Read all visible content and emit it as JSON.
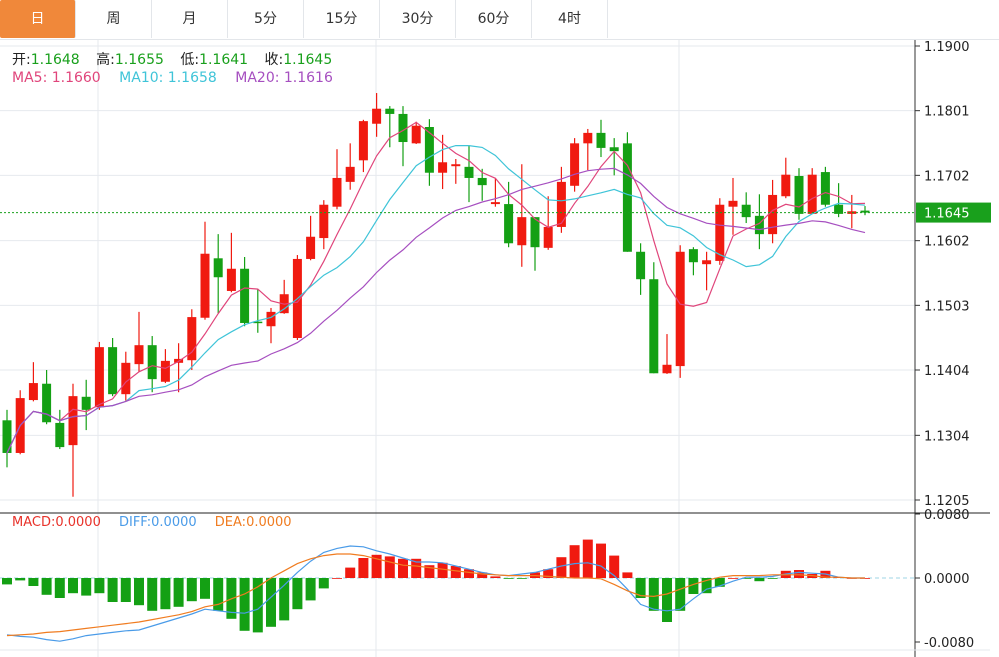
{
  "tabs": [
    {
      "label": "日",
      "active": true
    },
    {
      "label": "周"
    },
    {
      "label": "月"
    },
    {
      "label": "5分"
    },
    {
      "label": "15分"
    },
    {
      "label": "30分"
    },
    {
      "label": "60分"
    },
    {
      "label": "4时"
    }
  ],
  "header": {
    "open_label": "开:",
    "open": "1.1648",
    "high_label": "高:",
    "high": "1.1655",
    "low_label": "低:",
    "low": "1.1641",
    "close_label": "收:",
    "close": "1.1645",
    "ma5": "MA5: 1.1660",
    "ma10": "MA10: 1.1658",
    "ma20": "MA20: 1.1616"
  },
  "macd_legend": {
    "macd": "MACD:0.0000",
    "diff": "DIFF:0.0000",
    "dea": "DEA:0.0000"
  },
  "colors": {
    "up": "#f01a10",
    "down": "#14a014",
    "ma5": "#e0457b",
    "ma10": "#3fc4d8",
    "ma20": "#a64fc0",
    "diff": "#4a9be8",
    "dea": "#f07c20",
    "accent": "#f0883a",
    "last_price": "#19a01c"
  },
  "chart_data": [
    {
      "type": "candlestick",
      "ylim": [
        1.1205,
        1.19
      ],
      "y_ticks": [
        "1.1900",
        "1.1801",
        "1.1702",
        "1.1602",
        "1.1503",
        "1.1404",
        "1.1304",
        "1.1205"
      ],
      "last_price": "1.1645",
      "grid": true,
      "ma_periods": [
        5,
        10,
        20
      ],
      "ohlc": [
        [
          1.1327,
          1.1343,
          1.1255,
          1.1277
        ],
        [
          1.1277,
          1.1373,
          1.1275,
          1.1361
        ],
        [
          1.1358,
          1.1416,
          1.1356,
          1.1384
        ],
        [
          1.1383,
          1.1404,
          1.1321,
          1.1324
        ],
        [
          1.1323,
          1.1343,
          1.1283,
          1.1286
        ],
        [
          1.1289,
          1.1383,
          1.121,
          1.1364
        ],
        [
          1.1363,
          1.1389,
          1.1312,
          1.1343
        ],
        [
          1.1347,
          1.1447,
          1.1343,
          1.1439
        ],
        [
          1.1439,
          1.1453,
          1.1364,
          1.1367
        ],
        [
          1.1367,
          1.1432,
          1.1357,
          1.1415
        ],
        [
          1.1413,
          1.1493,
          1.1401,
          1.1442
        ],
        [
          1.1442,
          1.1456,
          1.137,
          1.139
        ],
        [
          1.1386,
          1.1436,
          1.1384,
          1.1418
        ],
        [
          1.1415,
          1.1445,
          1.137,
          1.1421
        ],
        [
          1.1419,
          1.1497,
          1.1404,
          1.1485
        ],
        [
          1.1484,
          1.1631,
          1.1481,
          1.1582
        ],
        [
          1.1575,
          1.1612,
          1.1491,
          1.1546
        ],
        [
          1.1525,
          1.1614,
          1.1523,
          1.1559
        ],
        [
          1.1559,
          1.1577,
          1.1471,
          1.1476
        ],
        [
          1.1478,
          1.1528,
          1.1461,
          1.1476
        ],
        [
          1.1471,
          1.1499,
          1.1445,
          1.1493
        ],
        [
          1.1491,
          1.1542,
          1.149,
          1.152
        ],
        [
          1.1453,
          1.158,
          1.145,
          1.1574
        ],
        [
          1.1574,
          1.164,
          1.1572,
          1.1608
        ],
        [
          1.1606,
          1.1664,
          1.1589,
          1.1657
        ],
        [
          1.1654,
          1.1742,
          1.165,
          1.1698
        ],
        [
          1.1692,
          1.1751,
          1.168,
          1.1715
        ],
        [
          1.1725,
          1.1787,
          1.1707,
          1.1785
        ],
        [
          1.1781,
          1.1828,
          1.1761,
          1.1804
        ],
        [
          1.1804,
          1.1808,
          1.1745,
          1.1796
        ],
        [
          1.1796,
          1.1808,
          1.1716,
          1.1753
        ],
        [
          1.1751,
          1.1784,
          1.175,
          1.1778
        ],
        [
          1.1776,
          1.1788,
          1.1686,
          1.1706
        ],
        [
          1.1706,
          1.1764,
          1.1681,
          1.1722
        ],
        [
          1.1716,
          1.1727,
          1.1689,
          1.1719
        ],
        [
          1.1715,
          1.1748,
          1.1661,
          1.1698
        ],
        [
          1.1698,
          1.1712,
          1.1663,
          1.1687
        ],
        [
          1.1658,
          1.1698,
          1.1654,
          1.1661
        ],
        [
          1.1658,
          1.1692,
          1.1592,
          1.1598
        ],
        [
          1.1595,
          1.1719,
          1.1562,
          1.1638
        ],
        [
          1.1638,
          1.1638,
          1.1556,
          1.1592
        ],
        [
          1.1591,
          1.167,
          1.1588,
          1.1623
        ],
        [
          1.1623,
          1.1715,
          1.1614,
          1.1692
        ],
        [
          1.1686,
          1.1759,
          1.1677,
          1.1751
        ],
        [
          1.1751,
          1.1773,
          1.171,
          1.1767
        ],
        [
          1.1767,
          1.1787,
          1.173,
          1.1744
        ],
        [
          1.1745,
          1.1759,
          1.1702,
          1.1739
        ],
        [
          1.1751,
          1.1768,
          1.1585,
          1.1585
        ],
        [
          1.1585,
          1.1598,
          1.1519,
          1.1543
        ],
        [
          1.1543,
          1.1569,
          1.1399,
          1.1399
        ],
        [
          1.1399,
          1.1459,
          1.1398,
          1.1412
        ],
        [
          1.141,
          1.1595,
          1.1392,
          1.1585
        ],
        [
          1.1589,
          1.1592,
          1.1549,
          1.1569
        ],
        [
          1.1566,
          1.1585,
          1.1526,
          1.1572
        ],
        [
          1.1571,
          1.1667,
          1.1565,
          1.1657
        ],
        [
          1.1654,
          1.1698,
          1.1611,
          1.1663
        ],
        [
          1.1657,
          1.1676,
          1.1629,
          1.1638
        ],
        [
          1.164,
          1.1673,
          1.1589,
          1.1612
        ],
        [
          1.1612,
          1.1695,
          1.1598,
          1.1672
        ],
        [
          1.167,
          1.1729,
          1.1667,
          1.1703
        ],
        [
          1.1701,
          1.1713,
          1.1634,
          1.1643
        ],
        [
          1.1643,
          1.1713,
          1.1643,
          1.1703
        ],
        [
          1.1707,
          1.1715,
          1.1654,
          1.1657
        ],
        [
          1.1657,
          1.169,
          1.1638,
          1.1643
        ],
        [
          1.1643,
          1.1672,
          1.1621,
          1.1647
        ],
        [
          1.1648,
          1.1655,
          1.1641,
          1.1645
        ]
      ]
    },
    {
      "type": "bar+line",
      "ylim": [
        -0.008,
        0.008
      ],
      "y_ticks": [
        "0.0080",
        "0.0000",
        "-0.0080"
      ],
      "macd": [
        -0.0008,
        -0.0003,
        -0.001,
        -0.0021,
        -0.0025,
        -0.0019,
        -0.0022,
        -0.0019,
        -0.003,
        -0.003,
        -0.0034,
        -0.0041,
        -0.0039,
        -0.0036,
        -0.0029,
        -0.0026,
        -0.0041,
        -0.0051,
        -0.0066,
        -0.0068,
        -0.0061,
        -0.0053,
        -0.0039,
        -0.0028,
        -0.0013,
        0.0,
        0.0013,
        0.0025,
        0.0029,
        0.0027,
        0.0024,
        0.0024,
        0.0016,
        0.0019,
        0.0015,
        0.0011,
        0.0007,
        0.0002,
        -0.0001,
        -0.0001,
        0.0007,
        0.0011,
        0.0026,
        0.0041,
        0.0048,
        0.0043,
        0.0028,
        0.0007,
        -0.0025,
        -0.0041,
        -0.0055,
        -0.0041,
        -0.002,
        -0.0019,
        -0.0011,
        0.0,
        -0.0001,
        -0.0004,
        -0.0001,
        0.0009,
        0.001,
        0.0005,
        0.0009,
        0.0001,
        0.0,
        0.0
      ],
      "diff": [
        -0.0071,
        -0.0073,
        -0.0074,
        -0.0077,
        -0.0079,
        -0.0076,
        -0.0072,
        -0.007,
        -0.0068,
        -0.0066,
        -0.0065,
        -0.006,
        -0.0055,
        -0.005,
        -0.0045,
        -0.0039,
        -0.0041,
        -0.0043,
        -0.0044,
        -0.0039,
        -0.0024,
        -0.0009,
        0.0007,
        0.0021,
        0.0032,
        0.0037,
        0.004,
        0.0039,
        0.0034,
        0.003,
        0.0025,
        0.002,
        0.002,
        0.0019,
        0.0015,
        0.0011,
        0.0007,
        0.0004,
        0.0003,
        0.0005,
        0.0007,
        0.0011,
        0.0015,
        0.0018,
        0.0019,
        0.0015,
        0.0003,
        -0.0014,
        -0.0033,
        -0.0039,
        -0.0041,
        -0.0039,
        -0.0026,
        -0.0014,
        -0.001,
        -0.0004,
        0.0001,
        0.0001,
        0.0002,
        0.0005,
        0.0007,
        0.0006,
        0.0005,
        0.0001,
        0.0,
        0.0
      ],
      "dea": [
        -0.0072,
        -0.0071,
        -0.007,
        -0.0068,
        -0.0067,
        -0.0065,
        -0.0063,
        -0.0061,
        -0.0059,
        -0.0057,
        -0.0055,
        -0.0052,
        -0.0049,
        -0.0046,
        -0.0042,
        -0.0036,
        -0.0033,
        -0.0026,
        -0.002,
        -0.0011,
        0.0,
        0.0009,
        0.0018,
        0.0024,
        0.0028,
        0.003,
        0.003,
        0.0028,
        0.0024,
        0.002,
        0.0016,
        0.0015,
        0.0013,
        0.0011,
        0.0009,
        0.0007,
        0.0005,
        0.0004,
        0.0003,
        0.0003,
        0.0003,
        0.0002,
        0.0001,
        0.0,
        0.0,
        -0.0001,
        -0.0008,
        -0.0016,
        -0.0022,
        -0.0023,
        -0.002,
        -0.0014,
        -0.0008,
        -0.0003,
        0.0001,
        0.0003,
        0.0003,
        0.0003,
        0.0004,
        0.0004,
        0.0004,
        0.0003,
        0.0001,
        0.0001,
        0.0,
        0.0
      ]
    }
  ]
}
